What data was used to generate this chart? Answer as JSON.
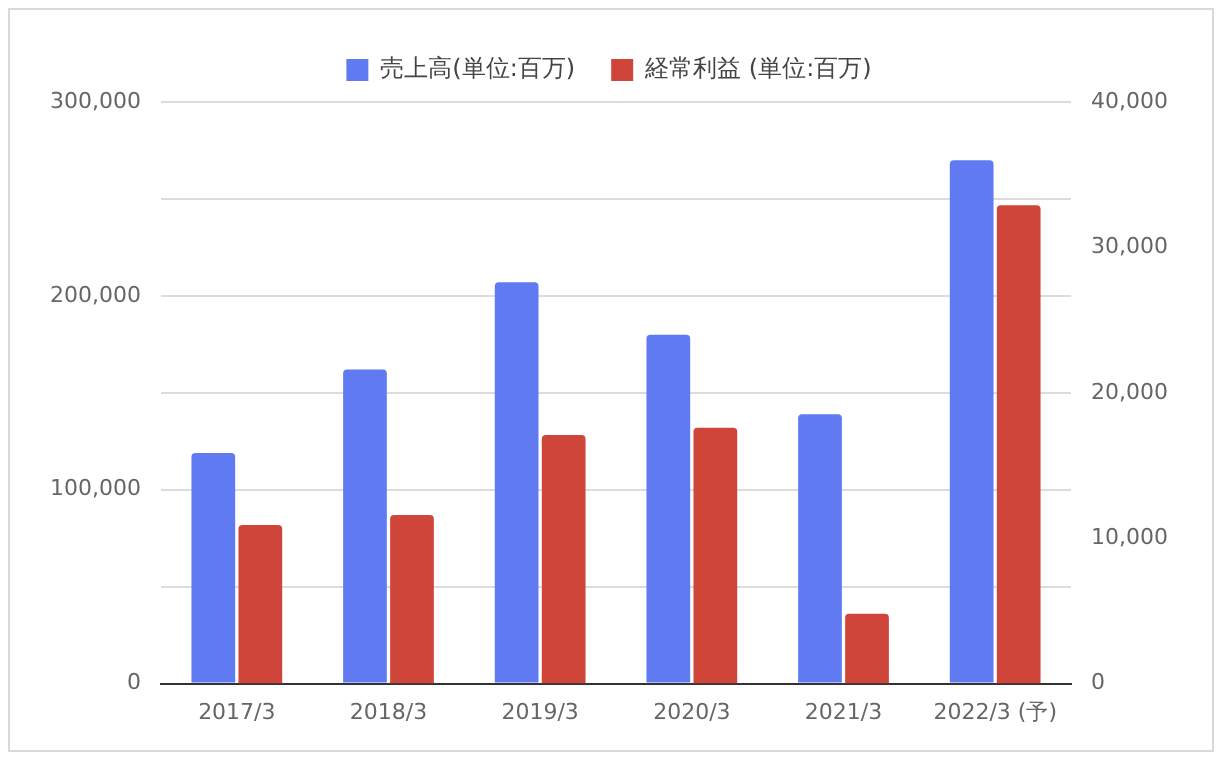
{
  "chart_data": {
    "type": "bar",
    "categories": [
      "2017/3",
      "2018/3",
      "2019/3",
      "2020/3",
      "2021/3",
      "2022/3 (予)"
    ],
    "series": [
      {
        "name": "売上高(単位:百万)",
        "color": "#607bf2",
        "values": [
          119000,
          162000,
          207000,
          180000,
          139000,
          270000
        ]
      },
      {
        "name": "経常利益 (単位:百万)",
        "color": "#cf4539",
        "axis": "y2",
        "values": [
          10900,
          11600,
          17100,
          17600,
          4800,
          32900
        ]
      }
    ],
    "ylim": [
      0,
      300000
    ],
    "yticks": [
      0,
      {
        "value": 50000,
        "label": null
      },
      {
        "value": 100000,
        "label": "100,000"
      },
      {
        "value": 150000,
        "label": null
      },
      {
        "value": 200000,
        "label": "200,000"
      },
      {
        "value": 250000,
        "label": null
      },
      {
        "value": 300000,
        "label": "300,000"
      }
    ],
    "y2lim": [
      0,
      40000
    ],
    "y2ticks": [
      0,
      {
        "value": 10000,
        "label": "10,000"
      },
      {
        "value": 20000,
        "label": "20,000"
      },
      {
        "value": 30000,
        "label": "30,000"
      },
      {
        "value": 40000,
        "label": "40,000"
      }
    ],
    "grid": "y",
    "legend": "top"
  }
}
